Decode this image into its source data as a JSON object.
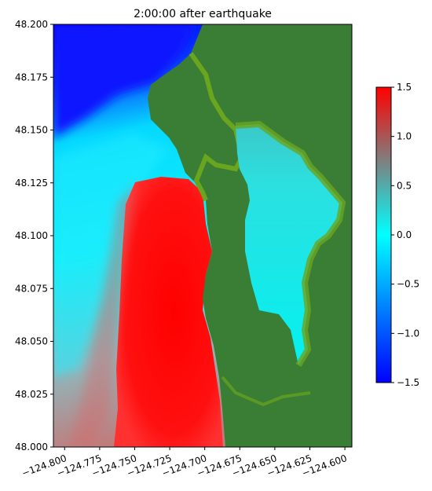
{
  "chart_data": {
    "type": "heatmap",
    "title": "2:00:00 after earthquake",
    "xlabel": "",
    "ylabel": "",
    "xlim": [
      -124.808,
      -124.595
    ],
    "ylim": [
      48.0,
      48.2
    ],
    "xticks": [
      -124.8,
      -124.775,
      -124.75,
      -124.725,
      -124.7,
      -124.675,
      -124.65,
      -124.625,
      -124.6
    ],
    "xtick_labels": [
      "−124.800",
      "−124.775",
      "−124.750",
      "−124.725",
      "−124.700",
      "−124.675",
      "−124.650",
      "−124.625",
      "−124.600"
    ],
    "yticks": [
      48.0,
      48.025,
      48.05,
      48.075,
      48.1,
      48.125,
      48.15,
      48.175,
      48.2
    ],
    "ytick_labels": [
      "48.000",
      "48.025",
      "48.050",
      "48.075",
      "48.100",
      "48.125",
      "48.150",
      "48.175",
      "48.200"
    ],
    "colorbar": {
      "min": -1.5,
      "max": 1.5,
      "ticks": [
        -1.5,
        -1.0,
        -0.5,
        0.0,
        0.5,
        1.0,
        1.5
      ],
      "tick_labels": [
        "−1.5",
        "−1.0",
        "−0.5",
        "0.0",
        "0.5",
        "1.0",
        "1.5"
      ],
      "colors": [
        "#0000ff",
        "#00ffff",
        "#ff0000"
      ]
    },
    "land_color": "#3a7d35",
    "shore_color": "#6aa520",
    "grid": false,
    "legend": "none"
  }
}
